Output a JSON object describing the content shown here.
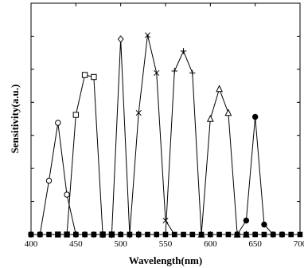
{
  "chart_data": {
    "type": "line",
    "title": "",
    "xlabel": "Wavelength(nm)",
    "ylabel": "Sensitivity(a.u.)",
    "xlim": [
      400,
      700
    ],
    "ylim": [
      0,
      1
    ],
    "xticks": [
      400,
      450,
      500,
      550,
      600,
      650,
      700
    ],
    "grid": false,
    "legend": "none",
    "line_color": "#000000",
    "series": [
      {
        "marker": "circle-open",
        "points": [
          [
            400,
            0
          ],
          [
            410,
            0
          ],
          [
            420,
            0.27
          ],
          [
            430,
            0.56
          ],
          [
            440,
            0.2
          ],
          [
            450,
            0
          ],
          [
            460,
            0
          ],
          [
            470,
            0
          ]
        ]
      },
      {
        "marker": "square-open",
        "points": [
          [
            430,
            0
          ],
          [
            440,
            0
          ],
          [
            450,
            0.6
          ],
          [
            460,
            0.8
          ],
          [
            470,
            0.79
          ],
          [
            480,
            0
          ],
          [
            490,
            0
          ]
        ]
      },
      {
        "marker": "diamond-open",
        "points": [
          [
            480,
            0
          ],
          [
            490,
            0
          ],
          [
            500,
            0.98
          ],
          [
            510,
            0
          ],
          [
            520,
            0
          ]
        ]
      },
      {
        "marker": "x",
        "points": [
          [
            510,
            0
          ],
          [
            520,
            0.61
          ],
          [
            530,
            1.0
          ],
          [
            540,
            0.81
          ],
          [
            550,
            0.07
          ],
          [
            560,
            0
          ]
        ]
      },
      {
        "marker": "plus",
        "points": [
          [
            540,
            0
          ],
          [
            550,
            0
          ],
          [
            560,
            0.82
          ],
          [
            570,
            0.92
          ],
          [
            580,
            0.81
          ],
          [
            590,
            0
          ],
          [
            600,
            0
          ]
        ]
      },
      {
        "marker": "triangle-open",
        "points": [
          [
            590,
            0
          ],
          [
            600,
            0.58
          ],
          [
            610,
            0.73
          ],
          [
            620,
            0.61
          ],
          [
            630,
            0
          ],
          [
            640,
            0
          ]
        ]
      },
      {
        "marker": "circle-filled",
        "points": [
          [
            630,
            0
          ],
          [
            640,
            0.07
          ],
          [
            650,
            0.59
          ],
          [
            660,
            0.05
          ],
          [
            670,
            0
          ],
          [
            680,
            0
          ]
        ]
      },
      {
        "marker": "square-filled",
        "points": [
          [
            400,
            0
          ],
          [
            410,
            0
          ],
          [
            420,
            0
          ],
          [
            430,
            0
          ],
          [
            440,
            0
          ],
          [
            450,
            0
          ],
          [
            460,
            0
          ],
          [
            470,
            0
          ],
          [
            480,
            0
          ],
          [
            490,
            0
          ],
          [
            500,
            0
          ],
          [
            510,
            0
          ],
          [
            520,
            0
          ],
          [
            530,
            0
          ],
          [
            540,
            0
          ],
          [
            550,
            0
          ],
          [
            560,
            0
          ],
          [
            570,
            0
          ],
          [
            580,
            0
          ],
          [
            590,
            0
          ],
          [
            600,
            0
          ],
          [
            610,
            0
          ],
          [
            620,
            0
          ],
          [
            630,
            0
          ],
          [
            640,
            0
          ],
          [
            650,
            0
          ],
          [
            660,
            0
          ],
          [
            670,
            0
          ],
          [
            680,
            0
          ],
          [
            690,
            0
          ],
          [
            700,
            0
          ]
        ]
      }
    ]
  }
}
